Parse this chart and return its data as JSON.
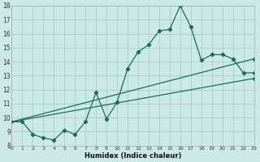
{
  "xlabel": "Humidex (Indice chaleur)",
  "bg_color": "#cce9e9",
  "grid_color": "#aacccc",
  "line_color": "#1a6b5a",
  "xlim": [
    0,
    23
  ],
  "ylim": [
    8,
    18
  ],
  "yticks": [
    8,
    9,
    10,
    11,
    12,
    13,
    14,
    15,
    16,
    17,
    18
  ],
  "xticks": [
    0,
    1,
    2,
    3,
    4,
    5,
    6,
    7,
    8,
    9,
    10,
    11,
    12,
    13,
    14,
    15,
    16,
    17,
    18,
    19,
    20,
    21,
    22,
    23
  ],
  "main_line": {
    "x": [
      0,
      1,
      2,
      3,
      4,
      5,
      6,
      7,
      8,
      9,
      10,
      11,
      12,
      13,
      14,
      15,
      16,
      17,
      18,
      19,
      20,
      21,
      22,
      23
    ],
    "y": [
      9.7,
      9.7,
      8.8,
      8.55,
      8.4,
      9.1,
      8.8,
      9.7,
      11.8,
      9.9,
      11.1,
      13.5,
      14.7,
      15.2,
      16.2,
      16.3,
      18.0,
      16.5,
      14.1,
      14.5,
      14.5,
      14.2,
      13.2,
      13.2
    ]
  },
  "line2": {
    "x": [
      0,
      23
    ],
    "y": [
      9.7,
      14.2
    ]
  },
  "line3": {
    "x": [
      0,
      23
    ],
    "y": [
      9.7,
      12.8
    ]
  },
  "marker_pts_line2": [
    [
      23,
      14.2
    ]
  ],
  "marker_pts_line3": [
    [
      23,
      12.8
    ]
  ]
}
